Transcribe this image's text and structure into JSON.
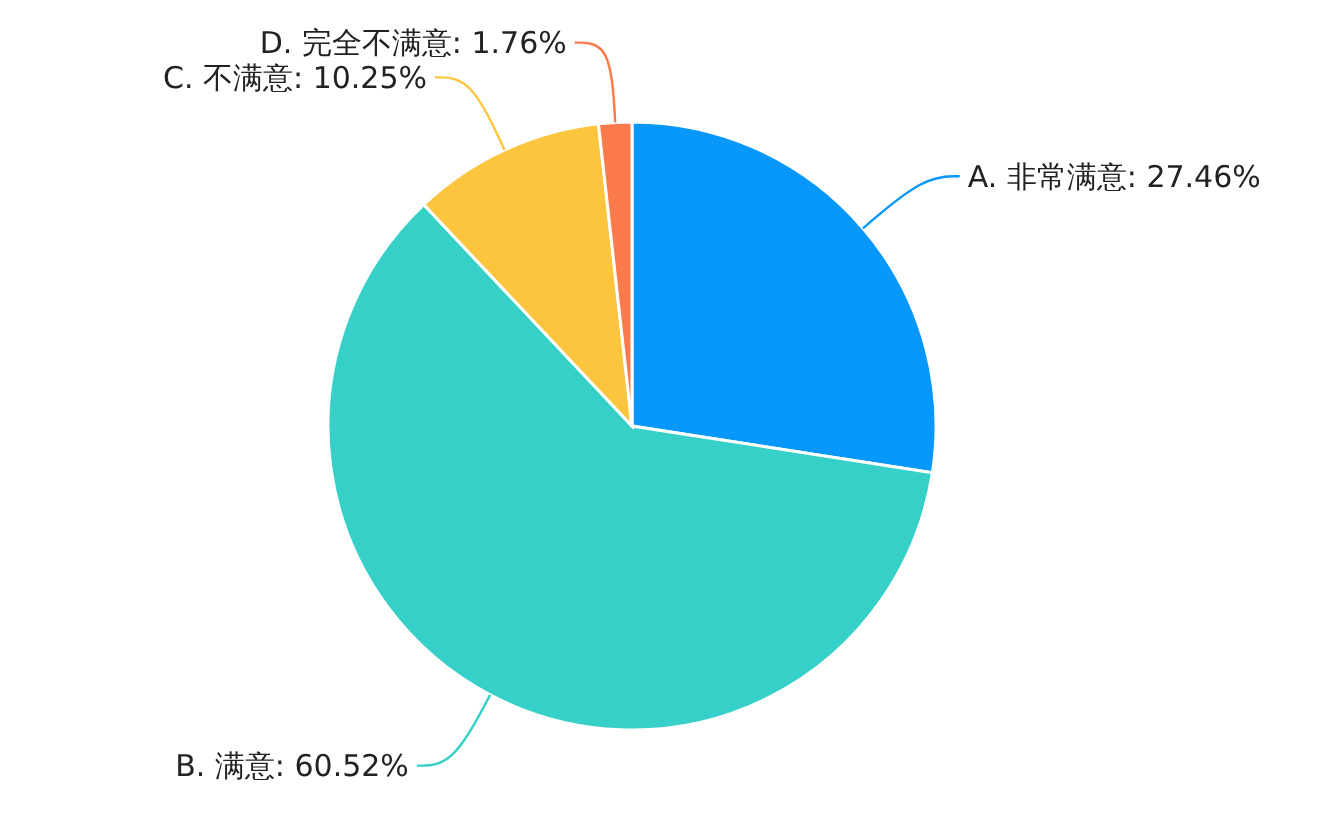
{
  "chart_data": {
    "type": "pie",
    "categories": [
      "A. 非常满意",
      "B. 满意",
      "C. 不满意",
      "D. 完全不满意"
    ],
    "values": [
      27.46,
      60.52,
      10.25,
      1.76
    ],
    "value_labels": [
      "27.46%",
      "60.52%",
      "10.25%",
      "1.76%"
    ],
    "colors": [
      "#0898fb",
      "#36d0c9",
      "#fdc43e",
      "#fb7a4b"
    ]
  }
}
